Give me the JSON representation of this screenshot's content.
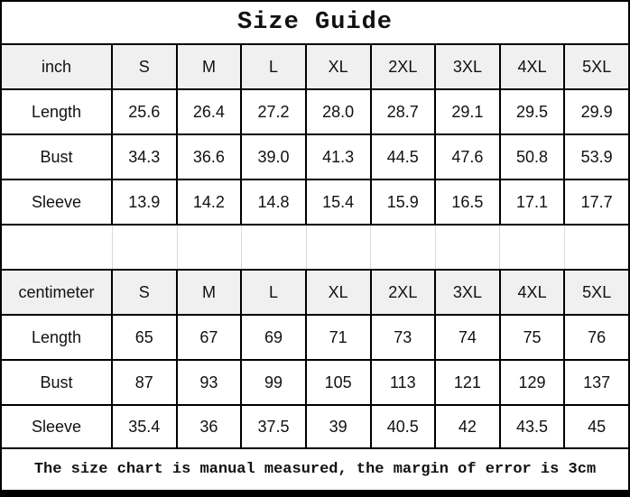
{
  "title": "Size Guide",
  "footer_note": "The size chart is manual measured, the margin of error is 3cm",
  "colors": {
    "border_color": "#000000",
    "header_bg": "#f0f0f0",
    "gap_divider": "#d9d9d9",
    "page_bg": "#ffffff",
    "text_color": "#111111"
  },
  "tables": [
    {
      "unit": "inch",
      "sizes": [
        "S",
        "M",
        "L",
        "XL",
        "2XL",
        "3XL",
        "4XL",
        "5XL"
      ],
      "rows": [
        {
          "label": "Length",
          "values": [
            "25.6",
            "26.4",
            "27.2",
            "28.0",
            "28.7",
            "29.1",
            "29.5",
            "29.9"
          ]
        },
        {
          "label": "Bust",
          "values": [
            "34.3",
            "36.6",
            "39.0",
            "41.3",
            "44.5",
            "47.6",
            "50.8",
            "53.9"
          ]
        },
        {
          "label": "Sleeve",
          "values": [
            "13.9",
            "14.2",
            "14.8",
            "15.4",
            "15.9",
            "16.5",
            "17.1",
            "17.7"
          ]
        }
      ]
    },
    {
      "unit": "centimeter",
      "sizes": [
        "S",
        "M",
        "L",
        "XL",
        "2XL",
        "3XL",
        "4XL",
        "5XL"
      ],
      "rows": [
        {
          "label": "Length",
          "values": [
            "65",
            "67",
            "69",
            "71",
            "73",
            "74",
            "75",
            "76"
          ]
        },
        {
          "label": "Bust",
          "values": [
            "87",
            "93",
            "99",
            "105",
            "113",
            "121",
            "129",
            "137"
          ]
        },
        {
          "label": "Sleeve",
          "values": [
            "35.4",
            "36",
            "37.5",
            "39",
            "40.5",
            "42",
            "43.5",
            "45"
          ]
        }
      ]
    }
  ]
}
